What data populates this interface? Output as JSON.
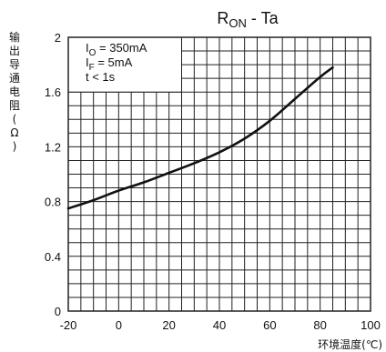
{
  "chart_data": {
    "type": "line",
    "title": {
      "main": "R",
      "sub": "ON",
      "tail": " - Ta"
    },
    "xlabel": "环境温度(℃)",
    "ylabel_chars": [
      "输",
      "出",
      "导",
      "通",
      "电",
      "阻",
      "(",
      "Ω",
      ")"
    ],
    "xlim": [
      -20,
      100
    ],
    "ylim": [
      0,
      2
    ],
    "grid": true,
    "x_ticks": [
      "-20",
      "0",
      "20",
      "40",
      "60",
      "80",
      "100"
    ],
    "y_ticks": [
      "0",
      "0.4",
      "0.8",
      "1.2",
      "1.6",
      "2"
    ],
    "legend_position": "top-left",
    "conditions": [
      {
        "base": "I",
        "sub": "O",
        "rest": " = 350mA"
      },
      {
        "base": "I",
        "sub": "F",
        "rest": " = 5mA"
      },
      {
        "base": "t < 1s",
        "sub": "",
        "rest": ""
      }
    ],
    "series": [
      {
        "x": [
          -20,
          -10,
          0,
          10,
          20,
          30,
          40,
          50,
          60,
          70,
          80,
          85
        ],
        "y": [
          0.75,
          0.81,
          0.88,
          0.94,
          1.01,
          1.08,
          1.16,
          1.26,
          1.39,
          1.55,
          1.71,
          1.78
        ]
      }
    ]
  }
}
